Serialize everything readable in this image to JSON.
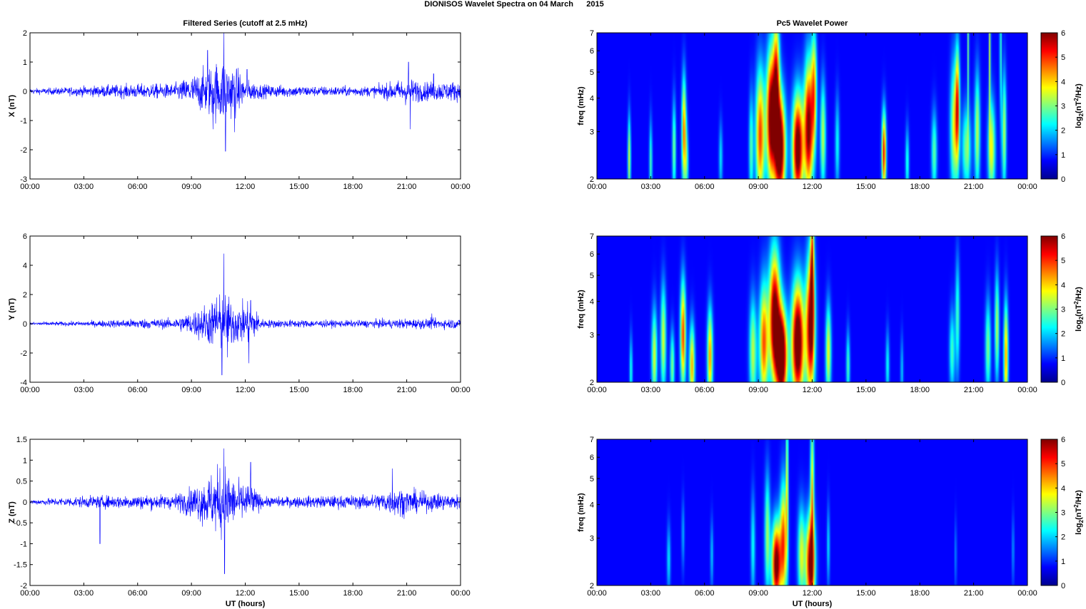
{
  "figure_title": "DIONISOS Wavelet Spectra on 04 March      2015",
  "colors": {
    "series": "#0000ff",
    "axis": "#000000",
    "grid": "#bbbbbb"
  },
  "chart_data": [
    {
      "id": "ts-x",
      "type": "line",
      "title": "Filtered Series (cutoff at 2.5 mHz)",
      "xlabel": "",
      "ylabel": "X (nT)",
      "x_ticks": [
        "00:00",
        "03:00",
        "06:00",
        "09:00",
        "12:00",
        "15:00",
        "18:00",
        "21:00",
        "00:00"
      ],
      "y_ticks": [
        "-3",
        "-2",
        "-1",
        "0",
        "1",
        "2"
      ],
      "xlim_hours": [
        0,
        24
      ],
      "ylim": [
        -3,
        2
      ],
      "series": [
        {
          "color": "#0000ff",
          "noise_envelope": [
            [
              0,
              0.08
            ],
            [
              2,
              0.12
            ],
            [
              3,
              0.15
            ],
            [
              6,
              0.22
            ],
            [
              8,
              0.22
            ],
            [
              9,
              0.45
            ],
            [
              10,
              0.75
            ],
            [
              10.8,
              1.0
            ],
            [
              11.5,
              0.7
            ],
            [
              12,
              0.35
            ],
            [
              13,
              0.2
            ],
            [
              16,
              0.15
            ],
            [
              19,
              0.15
            ],
            [
              20,
              0.25
            ],
            [
              21,
              0.4
            ],
            [
              22,
              0.28
            ],
            [
              24,
              0.3
            ]
          ],
          "spikes": [
            [
              9.9,
              1.4
            ],
            [
              10.2,
              -1.3
            ],
            [
              10.8,
              2.0
            ],
            [
              10.9,
              -2.05
            ],
            [
              11.4,
              -1.4
            ],
            [
              12.1,
              0.75
            ],
            [
              21.1,
              1.0
            ],
            [
              21.2,
              -1.3
            ],
            [
              22.5,
              0.6
            ]
          ]
        }
      ]
    },
    {
      "id": "ts-y",
      "type": "line",
      "title": "",
      "xlabel": "",
      "ylabel": "Y (nT)",
      "x_ticks": [
        "00:00",
        "03:00",
        "06:00",
        "09:00",
        "12:00",
        "15:00",
        "18:00",
        "21:00",
        "00:00"
      ],
      "y_ticks": [
        "-4",
        "-2",
        "0",
        "2",
        "4",
        "6"
      ],
      "xlim_hours": [
        0,
        24
      ],
      "ylim": [
        -4,
        6
      ],
      "series": [
        {
          "color": "#0000ff",
          "noise_envelope": [
            [
              0,
              0.1
            ],
            [
              3,
              0.15
            ],
            [
              6,
              0.3
            ],
            [
              8,
              0.3
            ],
            [
              9,
              0.7
            ],
            [
              10,
              1.3
            ],
            [
              10.8,
              1.8
            ],
            [
              11.5,
              1.2
            ],
            [
              12.3,
              1.2
            ],
            [
              13,
              0.25
            ],
            [
              18,
              0.2
            ],
            [
              21,
              0.3
            ],
            [
              24,
              0.3
            ]
          ],
          "spikes": [
            [
              10.4,
              1.8
            ],
            [
              10.7,
              -3.5
            ],
            [
              10.8,
              4.8
            ],
            [
              11.0,
              -2.3
            ],
            [
              12.2,
              -2.7
            ],
            [
              12.3,
              1.6
            ],
            [
              22.4,
              0.7
            ]
          ]
        }
      ]
    },
    {
      "id": "ts-z",
      "type": "line",
      "title": "",
      "xlabel": "UT (hours)",
      "ylabel": "Z (nT)",
      "x_ticks": [
        "00:00",
        "03:00",
        "06:00",
        "09:00",
        "12:00",
        "15:00",
        "18:00",
        "21:00",
        "00:00"
      ],
      "y_ticks": [
        "-2",
        "-1.5",
        "-1",
        "-0.5",
        "0",
        "0.5",
        "1",
        "1.5"
      ],
      "xlim_hours": [
        0,
        24
      ],
      "ylim": [
        -2,
        1.5
      ],
      "series": [
        {
          "color": "#0000ff",
          "noise_envelope": [
            [
              0,
              0.05
            ],
            [
              3,
              0.12
            ],
            [
              6,
              0.15
            ],
            [
              8,
              0.15
            ],
            [
              9,
              0.3
            ],
            [
              10,
              0.55
            ],
            [
              10.8,
              0.8
            ],
            [
              11.5,
              0.4
            ],
            [
              12.2,
              0.4
            ],
            [
              13,
              0.1
            ],
            [
              19,
              0.15
            ],
            [
              20.5,
              0.3
            ],
            [
              22,
              0.2
            ],
            [
              24,
              0.15
            ]
          ],
          "spikes": [
            [
              3.9,
              -1.0
            ],
            [
              10.8,
              1.28
            ],
            [
              10.85,
              -1.72
            ],
            [
              12.3,
              0.95
            ],
            [
              20.2,
              0.8
            ]
          ]
        }
      ]
    },
    {
      "id": "wp-x",
      "type": "heatmap",
      "title": "Pc5 Wavelet Power",
      "xlabel": "",
      "ylabel": "freq (mHz)",
      "x_ticks": [
        "00:00",
        "03:00",
        "06:00",
        "09:00",
        "12:00",
        "15:00",
        "18:00",
        "21:00",
        "00:00"
      ],
      "y_ticks": [
        "2",
        "3",
        "4",
        "5",
        "6",
        "7"
      ],
      "xlim_hours": [
        0,
        24
      ],
      "ylim_mhz": [
        2,
        7
      ],
      "y_scale": "log",
      "colorbar": {
        "label_base": "log",
        "label_sub": "2",
        "label_mid": "(nT",
        "label_sup": "2",
        "label_end": "/Hz)",
        "ticks": [
          "0",
          "1",
          "2",
          "3",
          "4",
          "5",
          "6"
        ],
        "range": [
          0,
          6
        ],
        "colormap": "jet"
      },
      "blobs": [
        [
          1.8,
          2.4,
          0.08,
          0.35,
          3.2
        ],
        [
          3.0,
          2.3,
          0.08,
          0.35,
          2.2
        ],
        [
          4.3,
          2.6,
          0.1,
          0.4,
          2.6
        ],
        [
          4.85,
          3.0,
          0.12,
          0.45,
          4.4
        ],
        [
          5.0,
          2.3,
          0.1,
          0.3,
          2.0
        ],
        [
          6.9,
          2.4,
          0.1,
          0.3,
          1.6
        ],
        [
          8.6,
          2.6,
          0.12,
          0.45,
          2.3
        ],
        [
          9.1,
          2.9,
          0.25,
          0.55,
          4.8
        ],
        [
          9.7,
          3.4,
          0.25,
          0.55,
          6.5
        ],
        [
          10.2,
          2.6,
          0.3,
          0.45,
          7.2
        ],
        [
          10.0,
          4.6,
          0.18,
          0.55,
          4.8
        ],
        [
          11.2,
          2.6,
          0.3,
          0.45,
          6.8
        ],
        [
          11.8,
          3.1,
          0.25,
          0.55,
          6.2
        ],
        [
          12.1,
          4.3,
          0.15,
          0.5,
          3.8
        ],
        [
          12.6,
          2.9,
          0.15,
          0.45,
          3.0
        ],
        [
          13.4,
          2.7,
          0.12,
          0.4,
          1.8
        ],
        [
          16.0,
          2.5,
          0.12,
          0.35,
          5.2
        ],
        [
          17.3,
          2.3,
          0.1,
          0.3,
          2.0
        ],
        [
          18.8,
          2.5,
          0.15,
          0.35,
          2.4
        ],
        [
          19.9,
          3.1,
          0.2,
          0.55,
          3.2
        ],
        [
          20.1,
          3.7,
          0.12,
          0.5,
          4.6
        ],
        [
          20.6,
          2.6,
          0.25,
          0.35,
          2.6
        ],
        [
          21.2,
          3.0,
          0.15,
          0.5,
          3.0
        ],
        [
          22.0,
          2.6,
          0.2,
          0.4,
          3.4
        ],
        [
          22.7,
          3.0,
          0.12,
          0.5,
          3.0
        ],
        [
          20.7,
          6.2,
          0.05,
          0.7,
          2.5
        ],
        [
          21.9,
          6.2,
          0.05,
          0.7,
          3.2
        ],
        [
          22.5,
          6.2,
          0.05,
          0.7,
          2.5
        ]
      ]
    },
    {
      "id": "wp-y",
      "type": "heatmap",
      "title": "",
      "xlabel": "",
      "ylabel": "freq (mHz)",
      "x_ticks": [
        "00:00",
        "03:00",
        "06:00",
        "09:00",
        "12:00",
        "15:00",
        "18:00",
        "21:00",
        "00:00"
      ],
      "y_ticks": [
        "2",
        "3",
        "4",
        "5",
        "6",
        "7"
      ],
      "xlim_hours": [
        0,
        24
      ],
      "ylim_mhz": [
        2,
        7
      ],
      "y_scale": "log",
      "colorbar": {
        "label_base": "log",
        "label_sub": "2",
        "label_mid": "(nT",
        "label_sup": "2",
        "label_end": "/Hz)",
        "ticks": [
          "0",
          "1",
          "2",
          "3",
          "4",
          "5",
          "6"
        ],
        "range": [
          0,
          6
        ],
        "colormap": "jet"
      },
      "blobs": [
        [
          1.9,
          2.2,
          0.08,
          0.3,
          2.0
        ],
        [
          3.2,
          2.5,
          0.15,
          0.4,
          3.2
        ],
        [
          3.7,
          2.9,
          0.15,
          0.45,
          3.2
        ],
        [
          4.2,
          2.3,
          0.12,
          0.3,
          2.6
        ],
        [
          4.8,
          3.0,
          0.15,
          0.45,
          4.8
        ],
        [
          5.3,
          2.3,
          0.15,
          0.35,
          4.0
        ],
        [
          6.3,
          2.5,
          0.15,
          0.4,
          4.2
        ],
        [
          8.7,
          2.6,
          0.2,
          0.45,
          3.0
        ],
        [
          9.3,
          2.8,
          0.25,
          0.5,
          4.6
        ],
        [
          9.9,
          3.5,
          0.3,
          0.55,
          6.5
        ],
        [
          10.3,
          2.5,
          0.3,
          0.4,
          7.5
        ],
        [
          11.2,
          2.8,
          0.35,
          0.5,
          7.2
        ],
        [
          11.9,
          3.2,
          0.25,
          0.6,
          6.0
        ],
        [
          12.0,
          5.5,
          0.1,
          0.6,
          4.0
        ],
        [
          12.9,
          2.6,
          0.15,
          0.4,
          3.4
        ],
        [
          14.0,
          2.3,
          0.1,
          0.3,
          2.2
        ],
        [
          16.2,
          2.3,
          0.1,
          0.3,
          1.8
        ],
        [
          17.0,
          2.2,
          0.08,
          0.3,
          1.4
        ],
        [
          19.8,
          2.6,
          0.15,
          0.35,
          2.2
        ],
        [
          20.1,
          3.5,
          0.12,
          0.5,
          2.2
        ],
        [
          21.8,
          2.7,
          0.15,
          0.4,
          2.6
        ],
        [
          22.3,
          3.2,
          0.12,
          0.45,
          3.0
        ],
        [
          22.8,
          2.5,
          0.12,
          0.45,
          4.2
        ]
      ]
    },
    {
      "id": "wp-z",
      "type": "heatmap",
      "title": "",
      "xlabel": "UT (hours)",
      "ylabel": "freq (mHz)",
      "x_ticks": [
        "00:00",
        "03:00",
        "06:00",
        "09:00",
        "12:00",
        "15:00",
        "18:00",
        "21:00",
        "00:00"
      ],
      "y_ticks": [
        "2",
        "3",
        "4",
        "5",
        "6",
        "7"
      ],
      "xlim_hours": [
        0,
        24
      ],
      "ylim_mhz": [
        2,
        7
      ],
      "y_scale": "log",
      "colorbar": {
        "label_base": "log",
        "label_sub": "2",
        "label_mid": "(nT",
        "label_sup": "2",
        "label_end": "/Hz)",
        "ticks": [
          "0",
          "1",
          "2",
          "3",
          "4",
          "5",
          "6"
        ],
        "range": [
          0,
          6
        ],
        "colormap": "jet"
      },
      "blobs": [
        [
          4.0,
          2.5,
          0.1,
          0.3,
          1.6
        ],
        [
          4.8,
          3.1,
          0.08,
          0.3,
          1.2
        ],
        [
          6.4,
          2.6,
          0.08,
          0.3,
          1.4
        ],
        [
          8.7,
          2.8,
          0.12,
          0.45,
          1.8
        ],
        [
          9.5,
          3.1,
          0.15,
          0.5,
          2.8
        ],
        [
          10.0,
          2.4,
          0.25,
          0.35,
          6.5
        ],
        [
          10.4,
          2.9,
          0.2,
          0.5,
          4.6
        ],
        [
          10.6,
          5.0,
          0.06,
          0.7,
          3.4
        ],
        [
          11.4,
          2.6,
          0.2,
          0.4,
          3.2
        ],
        [
          11.9,
          2.4,
          0.25,
          0.4,
          6.2
        ],
        [
          12.0,
          4.5,
          0.1,
          0.65,
          3.6
        ],
        [
          12.9,
          2.8,
          0.08,
          0.35,
          1.6
        ],
        [
          20.0,
          2.6,
          0.06,
          0.3,
          1.0
        ],
        [
          23.2,
          2.7,
          0.06,
          0.3,
          1.2
        ]
      ]
    }
  ]
}
